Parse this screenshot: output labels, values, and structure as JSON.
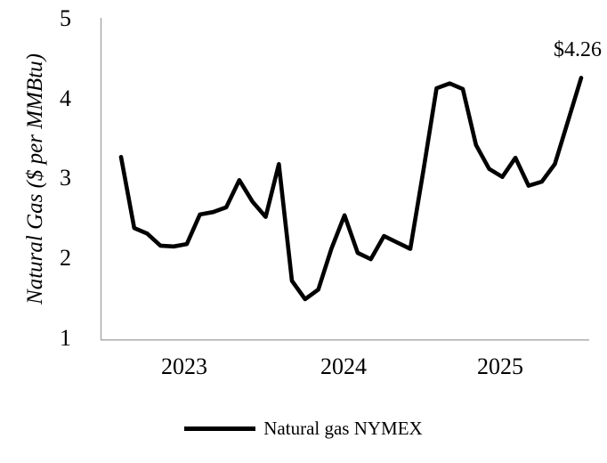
{
  "chart": {
    "y_axis_title": "Natural Gas ($ per MMBtu)",
    "y_tick_labels": [
      "5",
      "4",
      "3",
      "2",
      "1"
    ],
    "x_tick_labels": [
      "2023",
      "2024",
      "2025"
    ],
    "annotation_label": "$4.26",
    "legend_label": "Natural gas NYMEX",
    "line_color": "#000000",
    "axis_color": "#a6a6a6"
  },
  "chart_data": {
    "type": "line",
    "title": "",
    "xlabel": "",
    "ylabel": "Natural Gas ($ per MMBtu)",
    "ylim": [
      1,
      5
    ],
    "yticks": [
      1,
      2,
      3,
      4,
      5
    ],
    "xticks": [
      "2023",
      "2024",
      "2025"
    ],
    "grid": false,
    "legend_position": "bottom-center",
    "annotations": [
      {
        "text": "$4.26",
        "attached_to": "last point (2025-12)"
      }
    ],
    "x": [
      "2023-01",
      "2023-02",
      "2023-03",
      "2023-04",
      "2023-05",
      "2023-06",
      "2023-07",
      "2023-08",
      "2023-09",
      "2023-10",
      "2023-11",
      "2023-12",
      "2024-01",
      "2024-02",
      "2024-03",
      "2024-04",
      "2024-05",
      "2024-06",
      "2024-07",
      "2024-08",
      "2024-09",
      "2024-10",
      "2024-11",
      "2024-12",
      "2025-01",
      "2025-02",
      "2025-03",
      "2025-04",
      "2025-05",
      "2025-06",
      "2025-07",
      "2025-08",
      "2025-09",
      "2025-10",
      "2025-11",
      "2025-12"
    ],
    "series": [
      {
        "name": "Natural gas NYMEX",
        "color": "#000000",
        "values": [
          3.27,
          2.38,
          2.31,
          2.16,
          2.15,
          2.18,
          2.55,
          2.58,
          2.64,
          2.98,
          2.71,
          2.52,
          3.18,
          1.72,
          1.49,
          1.61,
          2.12,
          2.54,
          2.07,
          1.99,
          2.28,
          2.2,
          2.12,
          3.1,
          4.13,
          4.19,
          4.12,
          3.42,
          3.12,
          3.02,
          3.26,
          2.91,
          2.96,
          3.18,
          3.72,
          4.26
        ]
      }
    ]
  }
}
